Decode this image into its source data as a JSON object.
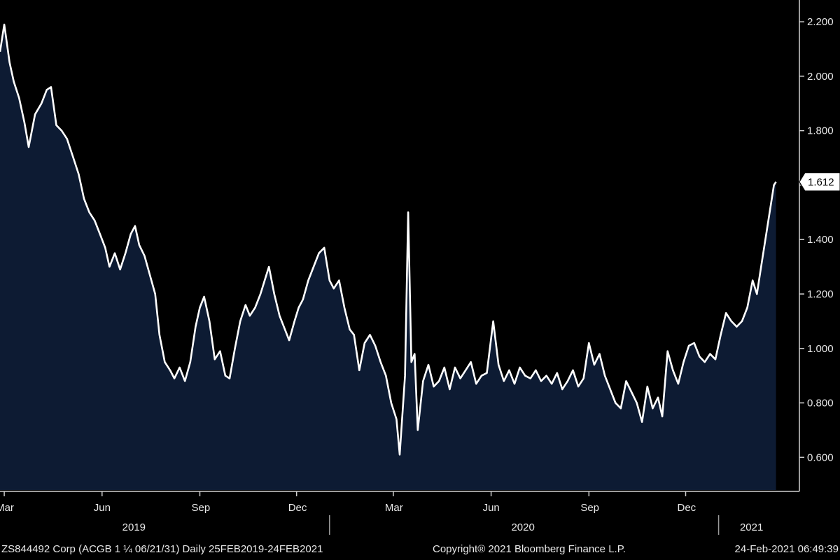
{
  "chart_data": {
    "type": "area",
    "title": "",
    "xlabel": "",
    "ylabel": "",
    "ylim": [
      0.48,
      2.28
    ],
    "y_ticks": [
      "0.600",
      "0.800",
      "1.000",
      "1.200",
      "1.400",
      "1.600",
      "1.800",
      "2.000",
      "2.200"
    ],
    "y_tick_values": [
      0.6,
      0.8,
      1.0,
      1.2,
      1.4,
      1.6,
      1.8,
      2.0,
      2.2
    ],
    "month_ticks": [
      {
        "date": "2019-03-01",
        "label": "Mar"
      },
      {
        "date": "2019-06-01",
        "label": "Jun"
      },
      {
        "date": "2019-09-01",
        "label": "Sep"
      },
      {
        "date": "2019-12-01",
        "label": "Dec"
      },
      {
        "date": "2020-03-01",
        "label": "Mar"
      },
      {
        "date": "2020-06-01",
        "label": "Jun"
      },
      {
        "date": "2020-09-01",
        "label": "Sep"
      },
      {
        "date": "2020-12-01",
        "label": "Dec"
      }
    ],
    "year_labels": [
      {
        "date": "2019-07-01",
        "label": "2019"
      },
      {
        "date": "2020-07-01",
        "label": "2020"
      },
      {
        "date": "2021-02-01",
        "label": "2021"
      }
    ],
    "year_dividers": [
      "2020-01-01",
      "2021-01-01"
    ],
    "x_start": "2019-02-25",
    "x_end": "2021-03-18",
    "last_value_label": "1.612",
    "last_value": 1.612,
    "grid": false,
    "colors": {
      "background": "#000000",
      "area_fill": "#0d1b33",
      "line": "#ffffff"
    },
    "series": [
      {
        "values": [
          [
            "2019-02-25",
            2.09
          ],
          [
            "2019-03-01",
            2.19
          ],
          [
            "2019-03-06",
            2.05
          ],
          [
            "2019-03-10",
            1.98
          ],
          [
            "2019-03-15",
            1.92
          ],
          [
            "2019-03-20",
            1.83
          ],
          [
            "2019-03-24",
            1.74
          ],
          [
            "2019-03-30",
            1.86
          ],
          [
            "2019-04-05",
            1.9
          ],
          [
            "2019-04-10",
            1.95
          ],
          [
            "2019-04-14",
            1.96
          ],
          [
            "2019-04-19",
            1.82
          ],
          [
            "2019-04-24",
            1.8
          ],
          [
            "2019-04-29",
            1.77
          ],
          [
            "2019-05-05",
            1.7
          ],
          [
            "2019-05-10",
            1.64
          ],
          [
            "2019-05-15",
            1.55
          ],
          [
            "2019-05-20",
            1.5
          ],
          [
            "2019-05-25",
            1.47
          ],
          [
            "2019-05-30",
            1.42
          ],
          [
            "2019-06-04",
            1.37
          ],
          [
            "2019-06-08",
            1.3
          ],
          [
            "2019-06-13",
            1.35
          ],
          [
            "2019-06-18",
            1.29
          ],
          [
            "2019-06-23",
            1.35
          ],
          [
            "2019-06-28",
            1.42
          ],
          [
            "2019-07-02",
            1.45
          ],
          [
            "2019-07-06",
            1.38
          ],
          [
            "2019-07-11",
            1.34
          ],
          [
            "2019-07-16",
            1.27
          ],
          [
            "2019-07-21",
            1.2
          ],
          [
            "2019-07-25",
            1.05
          ],
          [
            "2019-07-30",
            0.95
          ],
          [
            "2019-08-04",
            0.92
          ],
          [
            "2019-08-08",
            0.89
          ],
          [
            "2019-08-13",
            0.93
          ],
          [
            "2019-08-18",
            0.88
          ],
          [
            "2019-08-23",
            0.95
          ],
          [
            "2019-08-28",
            1.08
          ],
          [
            "2019-09-01",
            1.15
          ],
          [
            "2019-09-05",
            1.19
          ],
          [
            "2019-09-10",
            1.1
          ],
          [
            "2019-09-15",
            0.96
          ],
          [
            "2019-09-20",
            0.99
          ],
          [
            "2019-09-25",
            0.9
          ],
          [
            "2019-09-29",
            0.89
          ],
          [
            "2019-10-04",
            1.0
          ],
          [
            "2019-10-09",
            1.1
          ],
          [
            "2019-10-14",
            1.16
          ],
          [
            "2019-10-18",
            1.12
          ],
          [
            "2019-10-23",
            1.15
          ],
          [
            "2019-10-28",
            1.2
          ],
          [
            "2019-11-01",
            1.25
          ],
          [
            "2019-11-05",
            1.3
          ],
          [
            "2019-11-10",
            1.2
          ],
          [
            "2019-11-15",
            1.12
          ],
          [
            "2019-11-19",
            1.08
          ],
          [
            "2019-11-24",
            1.03
          ],
          [
            "2019-11-29",
            1.1
          ],
          [
            "2019-12-03",
            1.15
          ],
          [
            "2019-12-07",
            1.18
          ],
          [
            "2019-12-12",
            1.25
          ],
          [
            "2019-12-17",
            1.3
          ],
          [
            "2019-12-22",
            1.35
          ],
          [
            "2019-12-27",
            1.37
          ],
          [
            "2020-01-01",
            1.25
          ],
          [
            "2020-01-05",
            1.22
          ],
          [
            "2020-01-10",
            1.25
          ],
          [
            "2020-01-15",
            1.15
          ],
          [
            "2020-01-20",
            1.07
          ],
          [
            "2020-01-24",
            1.05
          ],
          [
            "2020-01-29",
            0.92
          ],
          [
            "2020-02-03",
            1.02
          ],
          [
            "2020-02-08",
            1.05
          ],
          [
            "2020-02-13",
            1.01
          ],
          [
            "2020-02-18",
            0.95
          ],
          [
            "2020-02-23",
            0.9
          ],
          [
            "2020-02-28",
            0.8
          ],
          [
            "2020-03-04",
            0.74
          ],
          [
            "2020-03-07",
            0.61
          ],
          [
            "2020-03-12",
            0.9
          ],
          [
            "2020-03-15",
            1.5
          ],
          [
            "2020-03-18",
            0.95
          ],
          [
            "2020-03-21",
            0.98
          ],
          [
            "2020-03-24",
            0.7
          ],
          [
            "2020-03-29",
            0.88
          ],
          [
            "2020-04-03",
            0.94
          ],
          [
            "2020-04-08",
            0.86
          ],
          [
            "2020-04-13",
            0.88
          ],
          [
            "2020-04-18",
            0.93
          ],
          [
            "2020-04-23",
            0.85
          ],
          [
            "2020-04-28",
            0.93
          ],
          [
            "2020-05-03",
            0.89
          ],
          [
            "2020-05-08",
            0.92
          ],
          [
            "2020-05-13",
            0.95
          ],
          [
            "2020-05-18",
            0.87
          ],
          [
            "2020-05-23",
            0.9
          ],
          [
            "2020-05-28",
            0.91
          ],
          [
            "2020-06-03",
            1.1
          ],
          [
            "2020-06-08",
            0.94
          ],
          [
            "2020-06-13",
            0.88
          ],
          [
            "2020-06-18",
            0.92
          ],
          [
            "2020-06-23",
            0.87
          ],
          [
            "2020-06-28",
            0.93
          ],
          [
            "2020-07-03",
            0.9
          ],
          [
            "2020-07-08",
            0.89
          ],
          [
            "2020-07-13",
            0.92
          ],
          [
            "2020-07-18",
            0.88
          ],
          [
            "2020-07-23",
            0.9
          ],
          [
            "2020-07-28",
            0.87
          ],
          [
            "2020-08-02",
            0.91
          ],
          [
            "2020-08-07",
            0.85
          ],
          [
            "2020-08-12",
            0.88
          ],
          [
            "2020-08-17",
            0.92
          ],
          [
            "2020-08-22",
            0.86
          ],
          [
            "2020-08-27",
            0.89
          ],
          [
            "2020-09-01",
            1.02
          ],
          [
            "2020-09-06",
            0.94
          ],
          [
            "2020-09-11",
            0.98
          ],
          [
            "2020-09-16",
            0.9
          ],
          [
            "2020-09-21",
            0.85
          ],
          [
            "2020-09-26",
            0.8
          ],
          [
            "2020-10-01",
            0.78
          ],
          [
            "2020-10-06",
            0.88
          ],
          [
            "2020-10-11",
            0.84
          ],
          [
            "2020-10-16",
            0.8
          ],
          [
            "2020-10-21",
            0.73
          ],
          [
            "2020-10-26",
            0.86
          ],
          [
            "2020-10-31",
            0.78
          ],
          [
            "2020-11-05",
            0.82
          ],
          [
            "2020-11-09",
            0.75
          ],
          [
            "2020-11-14",
            0.99
          ],
          [
            "2020-11-19",
            0.92
          ],
          [
            "2020-11-24",
            0.87
          ],
          [
            "2020-11-29",
            0.95
          ],
          [
            "2020-12-04",
            1.01
          ],
          [
            "2020-12-09",
            1.02
          ],
          [
            "2020-12-14",
            0.97
          ],
          [
            "2020-12-19",
            0.95
          ],
          [
            "2020-12-24",
            0.98
          ],
          [
            "2020-12-29",
            0.96
          ],
          [
            "2021-01-03",
            1.05
          ],
          [
            "2021-01-08",
            1.13
          ],
          [
            "2021-01-13",
            1.1
          ],
          [
            "2021-01-18",
            1.08
          ],
          [
            "2021-01-23",
            1.1
          ],
          [
            "2021-01-28",
            1.15
          ],
          [
            "2021-02-02",
            1.25
          ],
          [
            "2021-02-06",
            1.2
          ],
          [
            "2021-02-10",
            1.3
          ],
          [
            "2021-02-14",
            1.4
          ],
          [
            "2021-02-18",
            1.5
          ],
          [
            "2021-02-22",
            1.6
          ],
          [
            "2021-02-24",
            1.612
          ]
        ]
      }
    ]
  },
  "footer": {
    "left": "ZS844492 Corp (ACGB 1 ¼ 06/21/31)  Daily 25FEB2019-24FEB2021",
    "center": "Copyright® 2021 Bloomberg Finance L.P.",
    "right": "24-Feb-2021 06:49:39"
  }
}
